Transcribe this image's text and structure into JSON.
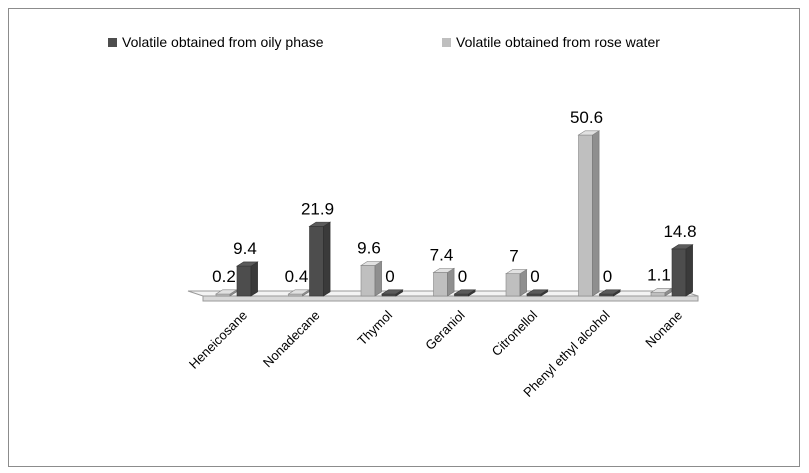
{
  "chart_data": {
    "type": "bar",
    "categories": [
      "Heneicosane",
      "Nonadecane",
      "Thymol",
      "Geraniol",
      "Citronellol",
      "Phenyl ethyl alcohol",
      "Nonane"
    ],
    "series": [
      {
        "name": "Volatile obtained from oily phase",
        "color": "#4d4d4d",
        "values": [
          9.4,
          21.9,
          0,
          0,
          0,
          0,
          14.8
        ]
      },
      {
        "name": "Volatile obtained from rose water",
        "color": "#bfbfbf",
        "values": [
          0.2,
          0.4,
          9.6,
          7.4,
          7,
          50.6,
          1.1
        ]
      }
    ],
    "category_series_order": [
      [
        "Volatile obtained from rose water",
        "Volatile obtained from oily phase"
      ],
      [
        "Volatile obtained from rose water",
        "Volatile obtained from oily phase"
      ],
      [
        "Volatile obtained from rose water",
        "Volatile obtained from oily phase"
      ],
      [
        "Volatile obtained from rose water",
        "Volatile obtained from oily phase"
      ],
      [
        "Volatile obtained from rose water",
        "Volatile obtained from oily phase"
      ],
      [
        "Volatile obtained from rose water",
        "Volatile obtained from oily phase"
      ],
      [
        "Volatile obtained from rose water",
        "Volatile obtained from oily phase"
      ]
    ],
    "data_labels": true,
    "style": "3d-column",
    "grid": false,
    "legend_position": "top",
    "ylim": [
      0,
      50.6
    ]
  }
}
